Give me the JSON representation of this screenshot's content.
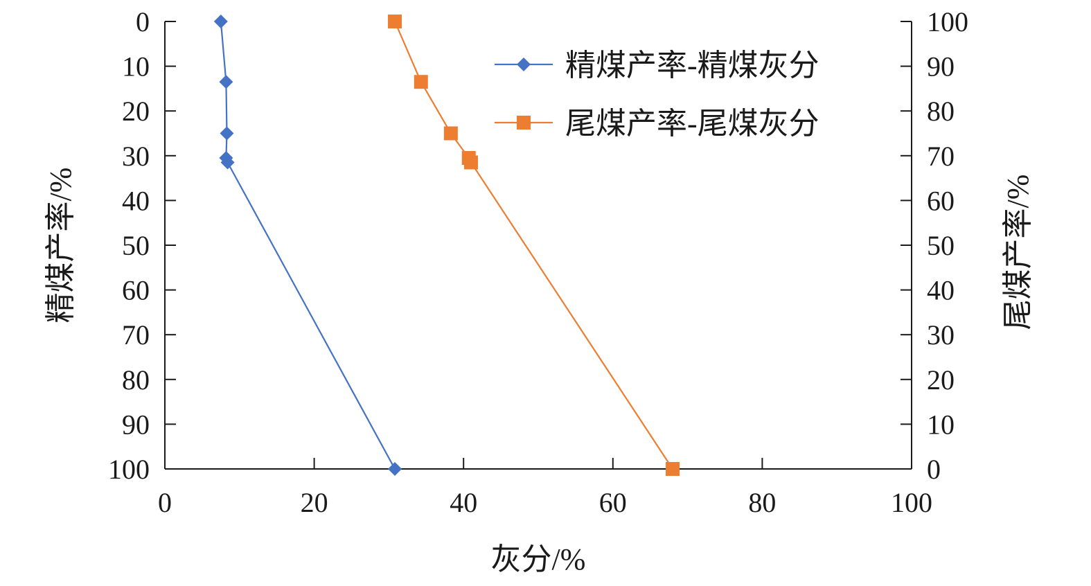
{
  "chart_data": {
    "type": "line",
    "title": "",
    "xlabel": "灰分/%",
    "ylabel_left": "精煤产率/%",
    "ylabel_right": "尾煤产率/%",
    "xlim": [
      0,
      100
    ],
    "ylim_left": [
      0,
      100
    ],
    "ylim_right": [
      0,
      100
    ],
    "left_axis_inverted": true,
    "x_ticks": [
      "0",
      "20",
      "40",
      "60",
      "80",
      "100"
    ],
    "y_left_ticks": [
      "0",
      "10",
      "20",
      "30",
      "40",
      "50",
      "60",
      "70",
      "80",
      "90",
      "100"
    ],
    "y_right_ticks": [
      "100",
      "90",
      "80",
      "70",
      "60",
      "50",
      "40",
      "30",
      "20",
      "10",
      "0"
    ],
    "grid": false,
    "legend_position": "top-right",
    "series": [
      {
        "name": "精煤产率-精煤灰分",
        "axis": "left",
        "color": "#4472C4",
        "marker": "diamond",
        "x": [
          7.5,
          8.2,
          8.3,
          8.2,
          8.4,
          30.8
        ],
        "y": [
          0,
          13.5,
          25,
          30.5,
          31.5,
          100
        ]
      },
      {
        "name": "尾煤产率-尾煤灰分",
        "axis": "right",
        "color": "#ED7D31",
        "marker": "square",
        "x": [
          30.8,
          34.3,
          38.3,
          40.7,
          41.0,
          68.0
        ],
        "y": [
          100,
          86.5,
          75,
          69.5,
          68.5,
          0
        ]
      }
    ]
  }
}
